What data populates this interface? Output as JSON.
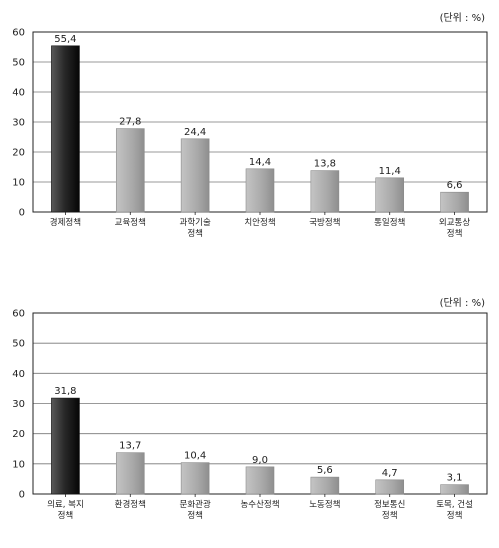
{
  "chart_data": [
    {
      "type": "bar",
      "unit_label": "(단위 : %)",
      "categories": [
        [
          "경제정책"
        ],
        [
          "교육정책"
        ],
        [
          "과학기술",
          "정책"
        ],
        [
          "치안정책"
        ],
        [
          "국방정책"
        ],
        [
          "통일정책"
        ],
        [
          "외교통상",
          "정책"
        ]
      ],
      "values": [
        55.4,
        27.8,
        24.4,
        14.4,
        13.8,
        11.4,
        6.6
      ],
      "value_labels": [
        "55,4",
        "27,8",
        "24,4",
        "14,4",
        "13,8",
        "11,4",
        "6,6"
      ],
      "yticks": [
        "0",
        "10",
        "20",
        "30",
        "40",
        "50",
        "60"
      ],
      "ylim": [
        0,
        60
      ],
      "grid": true,
      "highlight_color": "#2a2a2a",
      "bar_color": "#a8a8a8"
    },
    {
      "type": "bar",
      "unit_label": "(단위 : %)",
      "categories": [
        [
          "의료, 복지",
          "정책"
        ],
        [
          "환경정책"
        ],
        [
          "문화관광",
          "정책"
        ],
        [
          "농수산정책"
        ],
        [
          "노동정책"
        ],
        [
          "정보통신",
          "정책"
        ],
        [
          "토목, 건설",
          "정책"
        ]
      ],
      "values": [
        31.8,
        13.7,
        10.4,
        9.0,
        5.6,
        4.7,
        3.1
      ],
      "value_labels": [
        "31,8",
        "13,7",
        "10,4",
        "9,0",
        "5,6",
        "4,7",
        "3,1"
      ],
      "yticks": [
        "0",
        "10",
        "20",
        "30",
        "40",
        "50",
        "60"
      ],
      "ylim": [
        0,
        60
      ],
      "grid": true,
      "highlight_color": "#2a2a2a",
      "bar_color": "#a8a8a8"
    }
  ]
}
